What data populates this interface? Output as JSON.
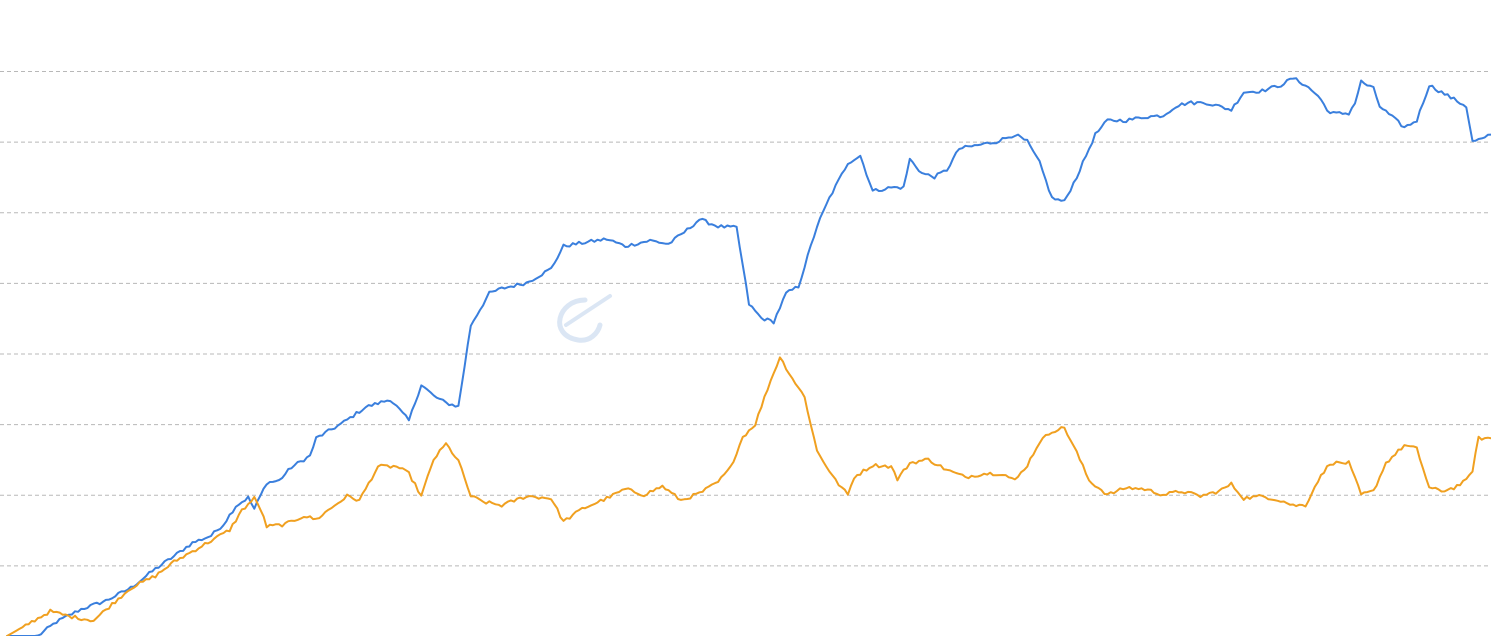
{
  "chart_data": {
    "type": "line",
    "grid": true,
    "legend": "none",
    "ylim": [
      0,
      8
    ],
    "xlim": [
      0,
      240
    ],
    "colors": {
      "series_0": "#3a7fdd",
      "series_1": "#f0a020",
      "grid": "#b8b8b8",
      "watermark": "#dbe6f4"
    },
    "series": [
      {
        "values": [
          [
            0,
            0.0
          ],
          [
            5,
            0.0
          ],
          [
            8,
            0.2
          ],
          [
            12,
            0.38
          ],
          [
            16,
            0.5
          ],
          [
            20,
            0.68
          ],
          [
            24,
            0.95
          ],
          [
            27,
            1.13
          ],
          [
            30,
            1.32
          ],
          [
            33,
            1.42
          ],
          [
            35,
            1.58
          ],
          [
            37,
            1.84
          ],
          [
            39,
            1.96
          ],
          [
            40,
            1.8
          ],
          [
            42,
            2.17
          ],
          [
            44,
            2.2
          ],
          [
            46,
            2.39
          ],
          [
            49,
            2.55
          ],
          [
            50,
            2.8
          ],
          [
            54,
            3.0
          ],
          [
            58,
            3.24
          ],
          [
            62,
            3.35
          ],
          [
            65,
            3.05
          ],
          [
            67,
            3.56
          ],
          [
            69,
            3.4
          ],
          [
            71,
            3.3
          ],
          [
            73,
            3.25
          ],
          [
            75,
            4.4
          ],
          [
            78,
            4.85
          ],
          [
            80,
            4.92
          ],
          [
            84,
            5.0
          ],
          [
            88,
            5.2
          ],
          [
            90,
            5.52
          ],
          [
            94,
            5.58
          ],
          [
            97,
            5.62
          ],
          [
            100,
            5.52
          ],
          [
            104,
            5.6
          ],
          [
            107,
            5.55
          ],
          [
            110,
            5.75
          ],
          [
            112,
            5.9
          ],
          [
            115,
            5.8
          ],
          [
            118,
            5.78
          ],
          [
            120,
            4.7
          ],
          [
            122,
            4.5
          ],
          [
            124,
            4.45
          ],
          [
            126,
            4.85
          ],
          [
            128,
            4.95
          ],
          [
            131,
            5.8
          ],
          [
            133,
            6.2
          ],
          [
            136,
            6.7
          ],
          [
            138,
            6.8
          ],
          [
            140,
            6.3
          ],
          [
            143,
            6.35
          ],
          [
            145,
            6.35
          ],
          [
            146,
            6.75
          ],
          [
            148,
            6.55
          ],
          [
            150,
            6.5
          ],
          [
            152,
            6.6
          ],
          [
            154,
            6.9
          ],
          [
            157,
            6.95
          ],
          [
            160,
            7.0
          ],
          [
            163,
            7.1
          ],
          [
            165,
            7.0
          ],
          [
            167,
            6.7
          ],
          [
            169,
            6.2
          ],
          [
            171,
            6.15
          ],
          [
            173,
            6.5
          ],
          [
            176,
            7.1
          ],
          [
            178,
            7.3
          ],
          [
            181,
            7.3
          ],
          [
            184,
            7.35
          ],
          [
            187,
            7.37
          ],
          [
            189,
            7.5
          ],
          [
            191,
            7.55
          ],
          [
            194,
            7.55
          ],
          [
            198,
            7.45
          ],
          [
            200,
            7.7
          ],
          [
            203,
            7.72
          ],
          [
            206,
            7.8
          ],
          [
            208,
            7.9
          ],
          [
            210,
            7.8
          ],
          [
            212,
            7.65
          ],
          [
            214,
            7.4
          ],
          [
            217,
            7.4
          ],
          [
            218,
            7.55
          ],
          [
            219,
            7.85
          ],
          [
            221,
            7.75
          ],
          [
            222,
            7.5
          ],
          [
            224,
            7.35
          ],
          [
            226,
            7.2
          ],
          [
            228,
            7.3
          ],
          [
            230,
            7.8
          ],
          [
            232,
            7.7
          ],
          [
            234,
            7.6
          ],
          [
            236,
            7.5
          ],
          [
            237,
            7.0
          ],
          [
            239,
            7.05
          ],
          [
            240,
            7.1
          ]
        ]
      },
      {
        "values": [
          [
            0,
            0.0
          ],
          [
            3,
            0.15
          ],
          [
            7,
            0.35
          ],
          [
            10,
            0.28
          ],
          [
            14,
            0.22
          ],
          [
            17,
            0.45
          ],
          [
            20,
            0.68
          ],
          [
            24,
            0.85
          ],
          [
            27,
            1.05
          ],
          [
            30,
            1.2
          ],
          [
            33,
            1.35
          ],
          [
            36,
            1.5
          ],
          [
            38,
            1.78
          ],
          [
            40,
            1.95
          ],
          [
            41,
            1.8
          ],
          [
            42,
            1.55
          ],
          [
            45,
            1.58
          ],
          [
            48,
            1.7
          ],
          [
            50,
            1.65
          ],
          [
            53,
            1.85
          ],
          [
            55,
            1.98
          ],
          [
            57,
            1.92
          ],
          [
            60,
            2.4
          ],
          [
            63,
            2.4
          ],
          [
            65,
            2.3
          ],
          [
            67,
            1.98
          ],
          [
            69,
            2.5
          ],
          [
            71,
            2.72
          ],
          [
            73,
            2.48
          ],
          [
            75,
            1.98
          ],
          [
            77,
            1.9
          ],
          [
            80,
            1.85
          ],
          [
            84,
            1.98
          ],
          [
            88,
            1.95
          ],
          [
            90,
            1.62
          ],
          [
            93,
            1.8
          ],
          [
            97,
            1.95
          ],
          [
            100,
            2.08
          ],
          [
            103,
            2.0
          ],
          [
            106,
            2.12
          ],
          [
            109,
            1.92
          ],
          [
            112,
            2.02
          ],
          [
            115,
            2.18
          ],
          [
            117,
            2.38
          ],
          [
            119,
            2.82
          ],
          [
            121,
            3.0
          ],
          [
            123,
            3.5
          ],
          [
            125,
            3.95
          ],
          [
            127,
            3.65
          ],
          [
            129,
            3.38
          ],
          [
            131,
            2.62
          ],
          [
            134,
            2.2
          ],
          [
            136,
            2.0
          ],
          [
            137,
            2.25
          ],
          [
            140,
            2.42
          ],
          [
            143,
            2.4
          ],
          [
            144,
            2.22
          ],
          [
            146,
            2.45
          ],
          [
            149,
            2.5
          ],
          [
            152,
            2.35
          ],
          [
            155,
            2.25
          ],
          [
            158,
            2.3
          ],
          [
            161,
            2.3
          ],
          [
            163,
            2.2
          ],
          [
            165,
            2.42
          ],
          [
            167,
            2.75
          ],
          [
            169,
            2.9
          ],
          [
            171,
            2.95
          ],
          [
            173,
            2.6
          ],
          [
            175,
            2.2
          ],
          [
            178,
            2.0
          ],
          [
            181,
            2.1
          ],
          [
            184,
            2.08
          ],
          [
            187,
            2.0
          ],
          [
            190,
            2.05
          ],
          [
            193,
            1.98
          ],
          [
            196,
            2.05
          ],
          [
            198,
            2.15
          ],
          [
            200,
            1.95
          ],
          [
            203,
            1.98
          ],
          [
            206,
            1.92
          ],
          [
            208,
            1.85
          ],
          [
            210,
            1.85
          ],
          [
            212,
            2.2
          ],
          [
            214,
            2.45
          ],
          [
            217,
            2.45
          ],
          [
            219,
            2.0
          ],
          [
            221,
            2.05
          ],
          [
            223,
            2.45
          ],
          [
            226,
            2.7
          ],
          [
            228,
            2.65
          ],
          [
            230,
            2.1
          ],
          [
            232,
            2.05
          ],
          [
            234,
            2.1
          ],
          [
            236,
            2.2
          ],
          [
            237,
            2.35
          ],
          [
            238,
            2.8
          ],
          [
            240,
            2.8
          ]
        ]
      }
    ]
  }
}
